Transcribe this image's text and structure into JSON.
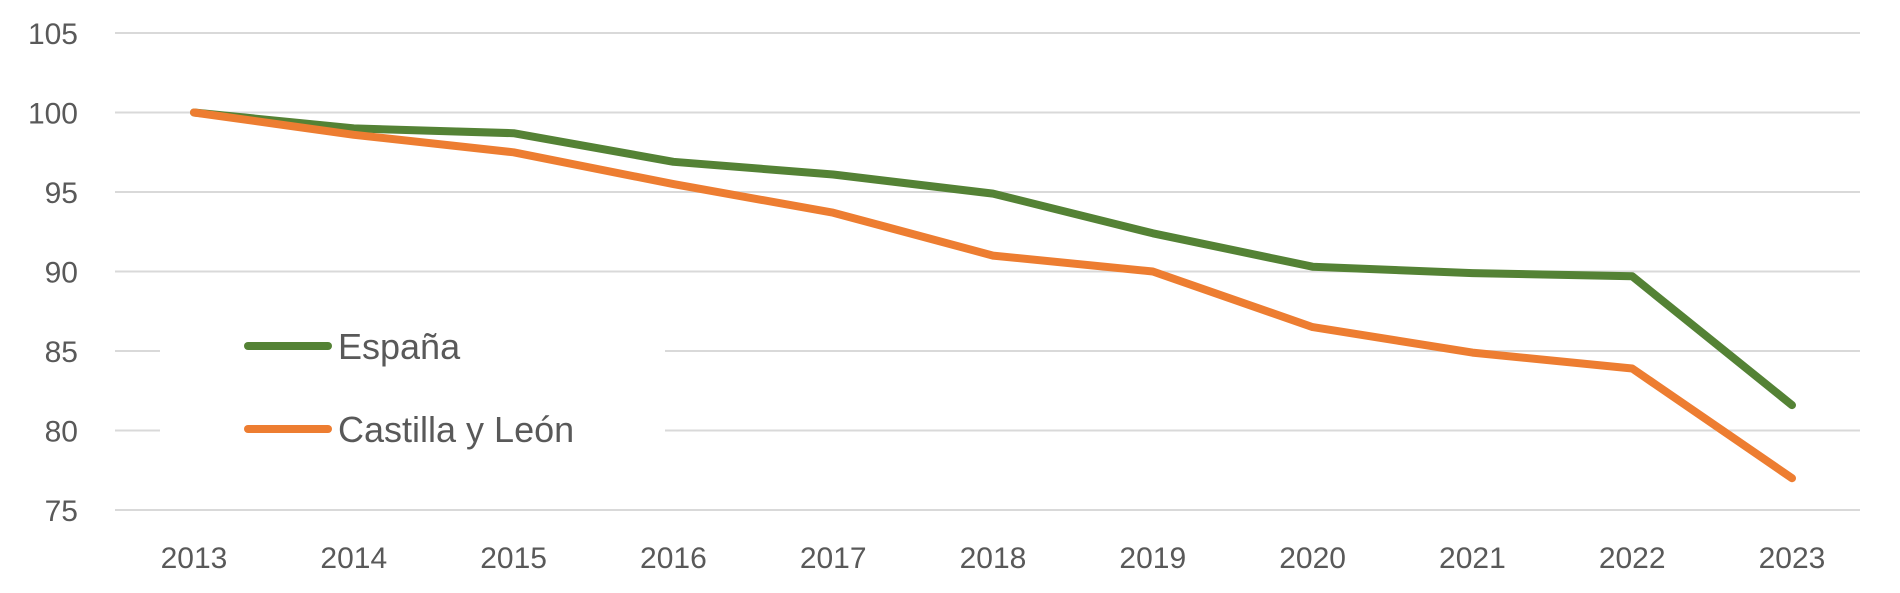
{
  "chart_data": {
    "type": "line",
    "title": "",
    "xlabel": "",
    "ylabel": "",
    "x": [
      "2013",
      "2014",
      "2015",
      "2016",
      "2017",
      "2018",
      "2019",
      "2020",
      "2021",
      "2022",
      "2023"
    ],
    "ylim": [
      75,
      105
    ],
    "yticks": [
      "75",
      "80",
      "85",
      "90",
      "95",
      "100",
      "105"
    ],
    "grid": "horizontal",
    "legend_position": "left-lower",
    "series": [
      {
        "name": "España",
        "color": "#548235",
        "values": [
          100,
          99.0,
          98.7,
          96.9,
          96.1,
          94.9,
          92.4,
          90.3,
          89.9,
          89.7,
          81.6
        ]
      },
      {
        "name": "Castilla y León",
        "color": "#ed7d31",
        "values": [
          100,
          98.6,
          97.5,
          95.5,
          93.7,
          91.0,
          90.0,
          86.5,
          84.9,
          83.9,
          77.0
        ]
      }
    ]
  }
}
